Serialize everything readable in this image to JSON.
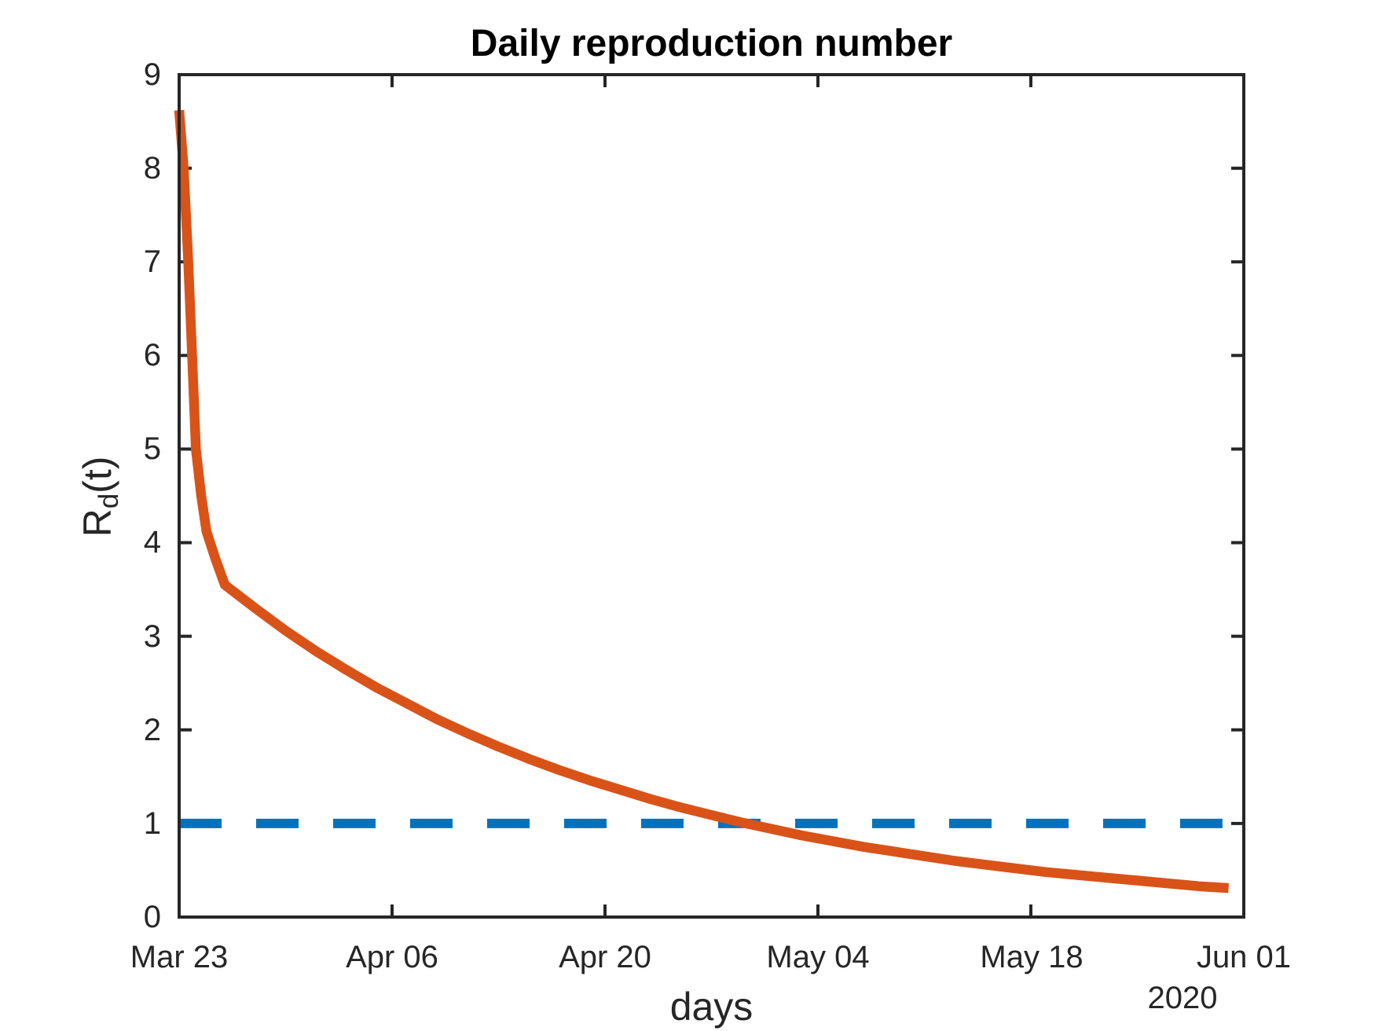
{
  "title": "Daily reproduction number",
  "x_axis": {
    "label": "days",
    "year": "2020",
    "tick_labels": [
      "Mar 23",
      "Apr 06",
      "Apr 20",
      "May 04",
      "May 18",
      "Jun 01"
    ]
  },
  "y_axis": {
    "label_base": "R",
    "label_sub": "d",
    "label_paren": "(t)",
    "tick_labels": [
      "0",
      "1",
      "2",
      "3",
      "4",
      "5",
      "6",
      "7",
      "8",
      "9"
    ]
  },
  "colors": {
    "curve": "#D95319",
    "threshold": "#0072BD",
    "axis": "#262626",
    "title_text": "#000000"
  },
  "chart_data": {
    "type": "line",
    "title": "Daily reproduction number",
    "xlabel": "days",
    "ylabel": "R_d(t)",
    "x_start_date": "Mar 23 2020",
    "x_end_date": "Jun 01 2020",
    "x_unit": "days since Mar 23, 2020",
    "xlim": [
      0,
      70
    ],
    "ylim": [
      0,
      9
    ],
    "x_tick_days": [
      0,
      14,
      28,
      42,
      56,
      70
    ],
    "x_tick_dates": [
      "Mar 23",
      "Apr 06",
      "Apr 20",
      "May 04",
      "May 18",
      "Jun 01"
    ],
    "y_ticks": [
      0,
      1,
      2,
      3,
      4,
      5,
      6,
      7,
      8,
      9
    ],
    "grid": false,
    "legend": "none",
    "series": [
      {
        "name": "daily reproduction number R_d(t)",
        "color": "#D95319",
        "style": "solid",
        "points": [
          [
            0,
            8.62
          ],
          [
            0.3,
            8.0
          ],
          [
            0.6,
            7.0
          ],
          [
            0.85,
            6.0
          ],
          [
            1.1,
            5.0
          ],
          [
            1.45,
            4.5
          ],
          [
            1.8,
            4.12
          ],
          [
            2.4,
            3.82
          ],
          [
            3,
            3.55
          ],
          [
            5,
            3.3
          ],
          [
            7,
            3.06
          ],
          [
            9,
            2.84
          ],
          [
            11,
            2.64
          ],
          [
            13,
            2.45
          ],
          [
            15,
            2.28
          ],
          [
            17,
            2.11
          ],
          [
            19,
            1.96
          ],
          [
            21,
            1.82
          ],
          [
            23,
            1.69
          ],
          [
            25,
            1.57
          ],
          [
            27,
            1.46
          ],
          [
            29,
            1.36
          ],
          [
            31,
            1.26
          ],
          [
            33,
            1.17
          ],
          [
            35,
            1.09
          ],
          [
            37,
            1.01
          ],
          [
            39,
            0.94
          ],
          [
            41,
            0.87
          ],
          [
            43,
            0.81
          ],
          [
            45,
            0.75
          ],
          [
            47,
            0.7
          ],
          [
            49,
            0.65
          ],
          [
            51,
            0.6
          ],
          [
            53,
            0.56
          ],
          [
            55,
            0.52
          ],
          [
            57,
            0.48
          ],
          [
            59,
            0.45
          ],
          [
            61,
            0.42
          ],
          [
            63,
            0.39
          ],
          [
            65,
            0.36
          ],
          [
            67,
            0.33
          ],
          [
            69,
            0.31
          ]
        ]
      },
      {
        "name": "epidemic threshold R = 1",
        "color": "#0072BD",
        "style": "dashed",
        "points": [
          [
            0,
            1
          ],
          [
            68.6,
            1
          ]
        ]
      }
    ]
  }
}
